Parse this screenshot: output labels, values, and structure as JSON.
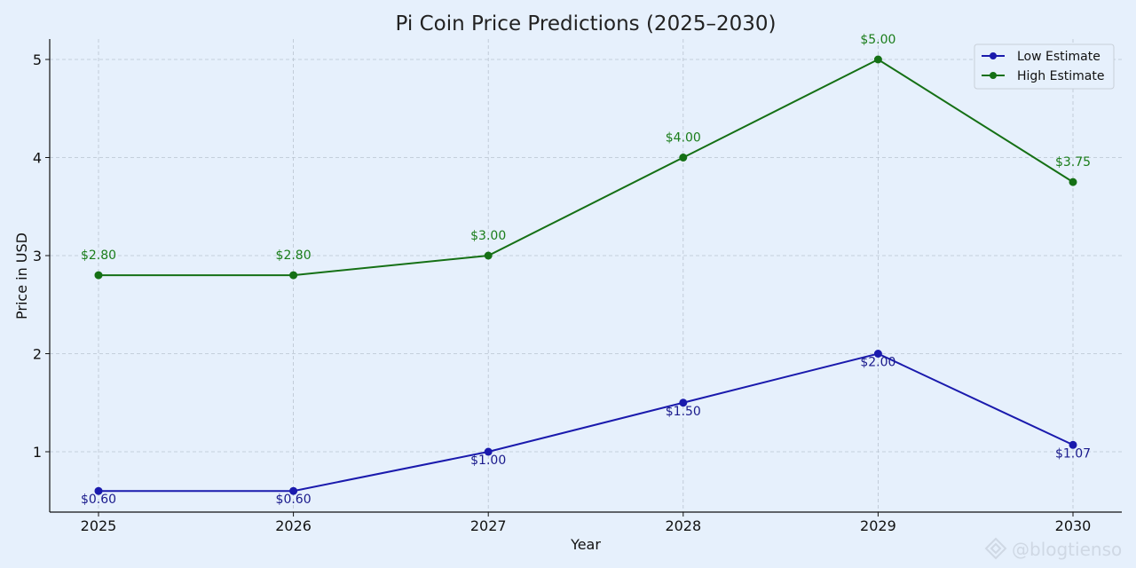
{
  "chart_data": {
    "type": "line",
    "title": "Pi Coin Price Predictions (2025–2030)",
    "xlabel": "Year",
    "ylabel": "Price in USD",
    "categories": [
      "2025",
      "2026",
      "2027",
      "2028",
      "2029",
      "2030"
    ],
    "yticks": [
      "1",
      "2",
      "3",
      "4",
      "5"
    ],
    "ylim": [
      0.4,
      5.2
    ],
    "grid": true,
    "legend_position": "top-right",
    "series": [
      {
        "name": "Low Estimate",
        "color": "#1a1aad",
        "label_color": "#1a1a8c",
        "values": [
          0.6,
          0.6,
          1.0,
          1.5,
          2.0,
          1.07
        ],
        "labels": [
          "$0.60",
          "$0.60",
          "$1.00",
          "$1.50",
          "$2.00",
          "$1.07"
        ],
        "label_side": "below"
      },
      {
        "name": "High Estimate",
        "color": "#157015",
        "label_color": "#1a7d1a",
        "values": [
          2.8,
          2.8,
          3.0,
          4.0,
          5.0,
          3.75
        ],
        "labels": [
          "$2.80",
          "$2.80",
          "$3.00",
          "$4.00",
          "$5.00",
          "$3.75"
        ],
        "label_side": "above"
      }
    ]
  },
  "watermark": {
    "text": "@blogtienso",
    "icon": "diamond-logo-icon"
  }
}
